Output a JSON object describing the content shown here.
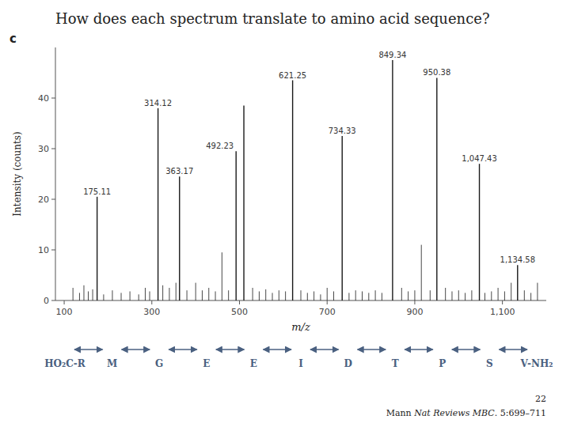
{
  "chart_data": {
    "type": "stem",
    "title": "How does each spectrum translate to amino acid sequence?",
    "panel_label": "c",
    "xlabel": "m/z",
    "ylabel": "Intensity (counts)",
    "xlim": [
      80,
      1200
    ],
    "ylim": [
      0,
      50
    ],
    "xticks": [
      100,
      300,
      500,
      700,
      900,
      {
        "value": 1100,
        "label": "1,100"
      }
    ],
    "yticks": [
      0,
      10,
      20,
      30,
      40
    ],
    "grid": false,
    "series": [
      {
        "color": "#1a1a1a",
        "x": [
          120,
          135,
          145,
          155,
          165,
          190,
          210,
          230,
          250,
          270,
          285,
          295,
          325,
          340,
          355,
          380,
          400,
          415,
          430,
          445,
          460,
          475,
          530,
          545,
          560,
          575,
          590,
          605,
          640,
          655,
          670,
          685,
          700,
          715,
          750,
          765,
          780,
          795,
          810,
          825,
          870,
          885,
          900,
          915,
          935,
          970,
          985,
          1000,
          1015,
          1030,
          1060,
          1075,
          1090,
          1105,
          1120,
          1150,
          1165,
          1180
        ],
        "values": [
          2.5,
          1.5,
          3.0,
          1.8,
          2.2,
          1.2,
          2.0,
          1.5,
          1.8,
          1.2,
          2.5,
          1.8,
          3.0,
          2.5,
          3.5,
          2.0,
          3.5,
          2.0,
          2.5,
          1.8,
          9.5,
          2.0,
          2.5,
          1.8,
          2.2,
          1.5,
          2.0,
          1.8,
          2.0,
          1.5,
          1.8,
          1.2,
          2.5,
          1.8,
          1.5,
          2.0,
          1.8,
          1.5,
          2.0,
          1.5,
          2.5,
          1.8,
          2.0,
          11.0,
          2.0,
          2.5,
          1.8,
          2.0,
          1.5,
          2.0,
          1.5,
          1.8,
          2.5,
          1.8,
          3.5,
          2.0,
          1.5,
          3.5
        ]
      },
      {
        "color": "#1a1a1a",
        "x": [
          175.11,
          314.12,
          363.17,
          492.23,
          510.0,
          621.25,
          734.33,
          849.34,
          950.38,
          1047.43,
          1134.58
        ],
        "values": [
          20.5,
          38.0,
          24.5,
          29.5,
          38.5,
          43.5,
          32.5,
          47.5,
          44.0,
          27.0,
          7.0
        ],
        "labels": [
          "175.11",
          "314.12",
          "363.17",
          "492.23",
          null,
          "621.25",
          "734.33",
          "849.34",
          "950.38",
          "1,047.43",
          "1,134.58"
        ]
      }
    ],
    "sequence": {
      "labels": [
        "HO₂C-R",
        "M",
        "G",
        "E",
        "E",
        "I",
        "D",
        "T",
        "P",
        "S",
        "V-NH₂"
      ],
      "color": "#4a6080"
    },
    "citation": {
      "line1": "22",
      "line2": [
        "Mann ",
        "Nat Reviews MBC",
        ". 5:699–711"
      ]
    }
  }
}
